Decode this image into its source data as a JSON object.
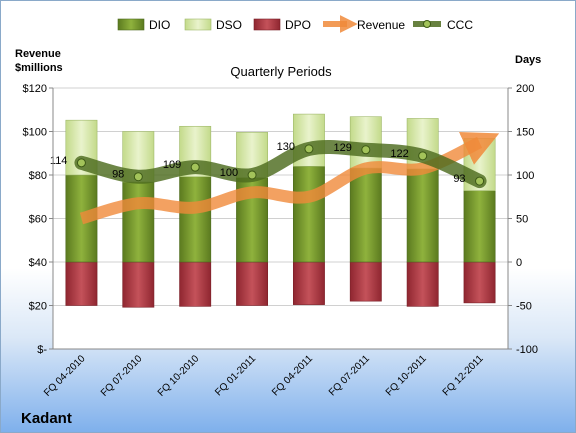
{
  "company": "Kadant",
  "chart_data": {
    "type": "bar",
    "title": "Quarterly Periods",
    "ylabel_left": "Revenue\n$millions",
    "ylabel_right": "Days",
    "categories": [
      "FQ 04-2010",
      "FQ 07-2010",
      "FQ 10-2010",
      "FQ 01-2011",
      "FQ 04-2011",
      "FQ 07-2011",
      "FQ 10-2011",
      "FQ 12-2011"
    ],
    "left_axis": {
      "min": 0,
      "max": 120,
      "ticks": [
        "$-",
        "$20",
        "$40",
        "$60",
        "$80",
        "$100",
        "$120"
      ]
    },
    "right_axis": {
      "min": -100,
      "max": 200,
      "ticks": [
        "-100",
        "-50",
        "0",
        "50",
        "100",
        "150",
        "200"
      ]
    },
    "legend": {
      "position": "top",
      "entries": [
        "DIO",
        "DSO",
        "DPO",
        "Revenue",
        "CCC"
      ]
    },
    "series": [
      {
        "name": "DIO",
        "axis": "right",
        "type": "stacked-bar",
        "values": [
          100,
          92,
          98,
          97,
          110,
          108,
          107,
          82
        ]
      },
      {
        "name": "DSO",
        "axis": "right",
        "type": "stacked-bar",
        "values": [
          63,
          58,
          58,
          52,
          60,
          59,
          58,
          60
        ]
      },
      {
        "name": "DPO",
        "axis": "right",
        "type": "negative-bar",
        "values": [
          -50,
          -52,
          -51,
          -50,
          -49,
          -45,
          -51,
          -47
        ]
      },
      {
        "name": "Revenue",
        "axis": "left",
        "type": "line",
        "values": [
          60,
          67,
          65,
          72,
          70,
          83,
          83,
          95
        ]
      },
      {
        "name": "CCC",
        "axis": "right",
        "type": "line",
        "values": [
          114,
          98,
          109,
          100,
          130,
          129,
          122,
          93
        ],
        "labels": [
          "114",
          "98",
          "109",
          "100",
          "130",
          "129",
          "122",
          "93"
        ]
      }
    ],
    "colors": {
      "DIO": "#6e8f2a",
      "DSO": "#d4e6a4",
      "DPO": "#a8343b",
      "Revenue": "#f08a3a",
      "CCC": "#4d6b1f"
    }
  }
}
